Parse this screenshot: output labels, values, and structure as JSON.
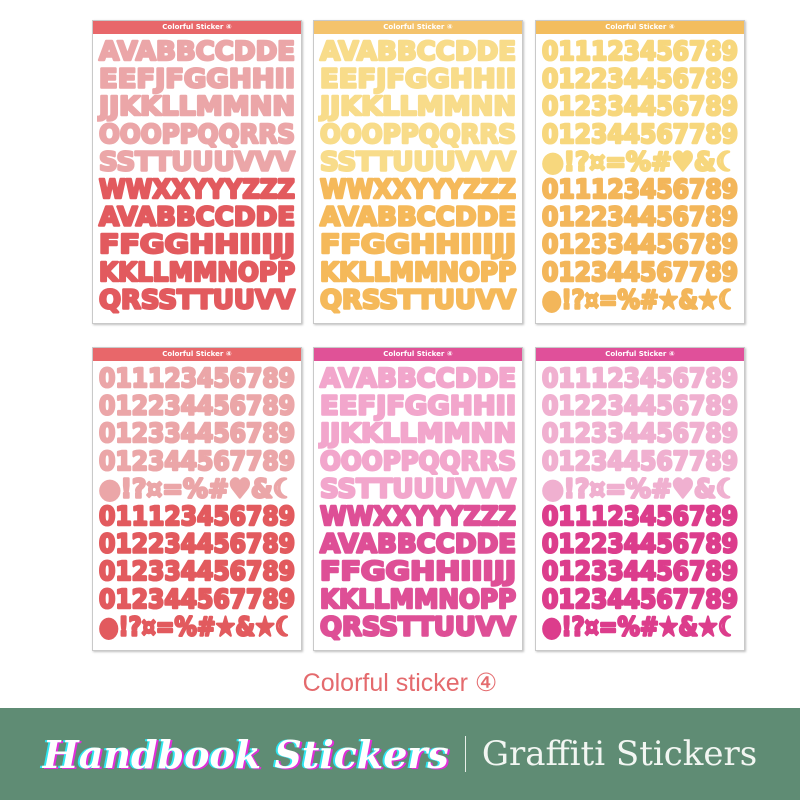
{
  "caption": "Colorful sticker ④",
  "banner": {
    "brand": "Handbook Stickers",
    "separator": "|",
    "subtitle": "Graffiti Stickers"
  },
  "sheets": [
    {
      "title": "Colorful Sticker ④",
      "type": "letters",
      "header": "#e8676a",
      "light": "#eba6a8",
      "dark": "#e25a5e"
    },
    {
      "title": "Colorful Sticker ④",
      "type": "letters",
      "header": "#f4c36c",
      "light": "#f8dc8a",
      "dark": "#f5b95a"
    },
    {
      "title": "Colorful Sticker ④",
      "type": "numbers",
      "header": "#f3bd5e",
      "light": "#f7d77d",
      "dark": "#f3b65a"
    },
    {
      "title": "Colorful Sticker ④",
      "type": "numbers",
      "header": "#e8676a",
      "light": "#eba6a8",
      "dark": "#e25a5e"
    },
    {
      "title": "Colorful Sticker ④",
      "type": "letters",
      "header": "#e05297",
      "light": "#f2a6cc",
      "dark": "#de4f96"
    },
    {
      "title": "Colorful Sticker ④",
      "type": "numbers",
      "header": "#e0509a",
      "light": "#f0b0d0",
      "dark": "#dc3d8c"
    }
  ],
  "rows": {
    "letters": [
      "AVABBCCDDE",
      "EEFJFGGHHII",
      "JJKKLLMMNN",
      "OOOPPQQRRS",
      "SSTTUUUVVV",
      "WWXXYYYZZZ",
      "AVABBCCDDE",
      "FFGGHHIIIJJ",
      "KKLLMMNOPP",
      "QRSSTTUUVV"
    ],
    "numbers": [
      "011123456789",
      "012234456789",
      "012334456789",
      "012344567789",
      "●!?¤=%#♥&☾",
      "011123456789",
      "012234456789",
      "012334456789",
      "012344567789",
      "●!?¤=%#★&★☾"
    ]
  }
}
